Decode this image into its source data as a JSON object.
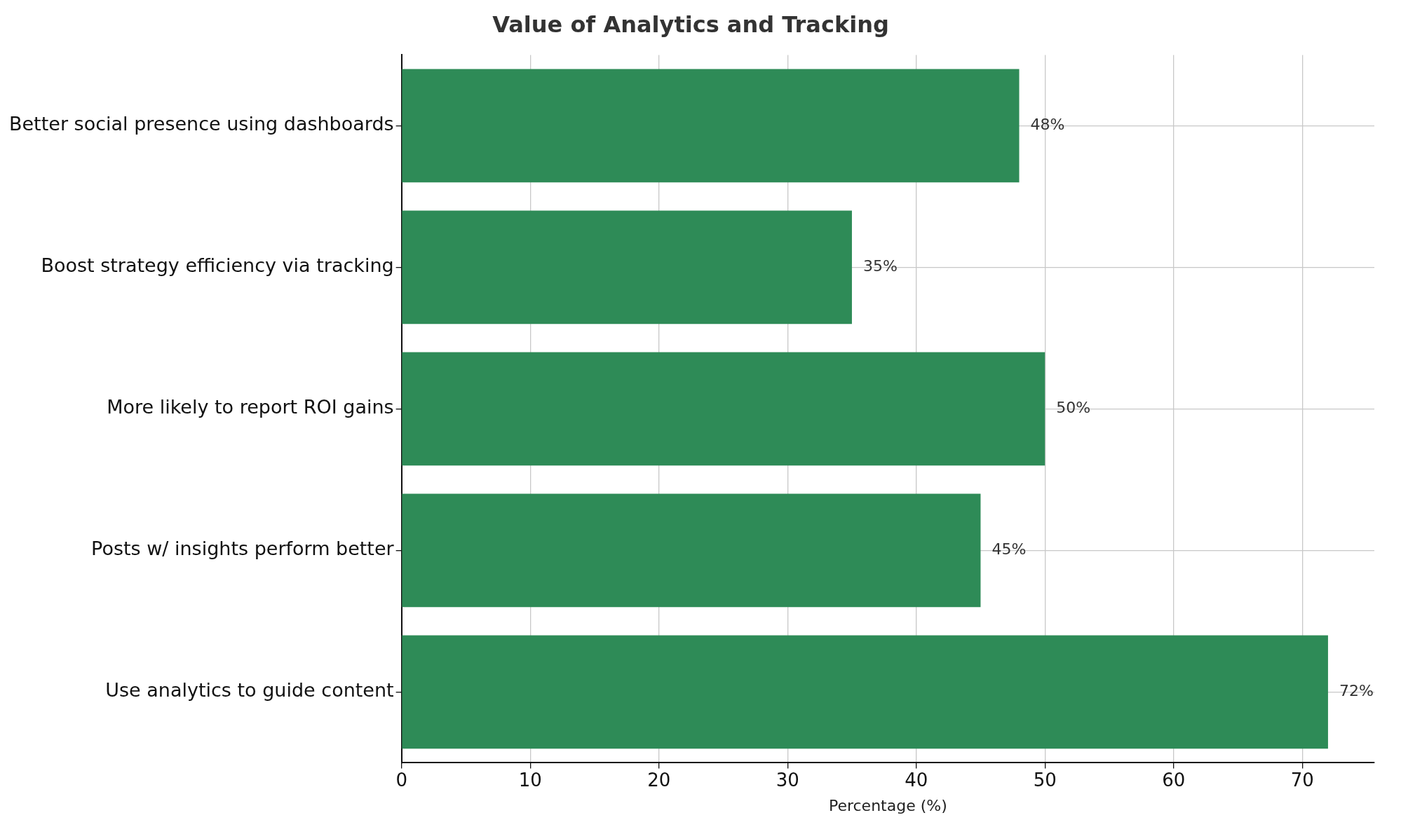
{
  "chart_data": {
    "type": "bar",
    "orientation": "horizontal",
    "title": "Value of Analytics and Tracking",
    "xlabel": "Percentage (%)",
    "categories": [
      "Better social presence using dashboards",
      "Boost strategy efficiency via tracking",
      "More likely to report ROI gains",
      "Posts w/ insights perform better",
      "Use analytics to guide content"
    ],
    "values": [
      48,
      35,
      50,
      45,
      72
    ],
    "value_labels": [
      "48%",
      "35%",
      "50%",
      "45%",
      "72%"
    ],
    "color": "#2e8b57",
    "xlim": [
      0,
      75.6
    ],
    "xticks": [
      0,
      10,
      20,
      30,
      40,
      50,
      60,
      70
    ],
    "grid": true
  }
}
